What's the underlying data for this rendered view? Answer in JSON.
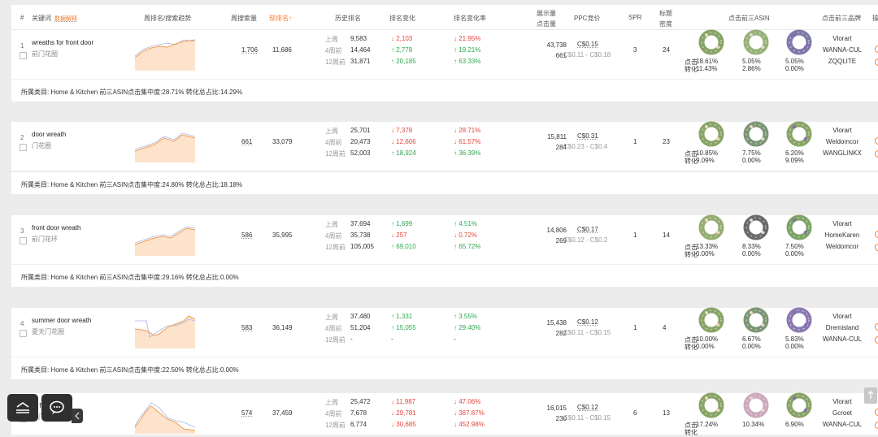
{
  "header": {
    "index": "#",
    "keyword": "关键词",
    "data_explain": "数据解释",
    "trend": "周排名/搜索趋势",
    "weekly_search": "周搜索量",
    "current_rank": "现排名↑",
    "history_rank": "历史排名",
    "rank_change": "排名变化",
    "rank_change_rate": "排名变化率",
    "impressions": "展示量",
    "clicks": "点击量",
    "ppc": "PPC竞价",
    "spr": "SPR",
    "title_density_1": "标题",
    "title_density_2": "密度",
    "top3_asin": "点击前三ASIN",
    "top3_brand": "点击前三品牌",
    "more": "操"
  },
  "period_labels": [
    "上周",
    "4周前",
    "12周前"
  ],
  "metric_labels": {
    "click": "点击",
    "conv": "转化"
  },
  "rows": [
    {
      "index": "1",
      "keyword": "wreaths for front door",
      "keyword_cn": "前门花圈",
      "weekly_search": "1,706",
      "rank": "11,686",
      "history": [
        "9,583",
        "14,464",
        "31,871"
      ],
      "change": [
        "2,103",
        "2,778",
        "20,185"
      ],
      "change_dir": [
        "down",
        "up",
        "up"
      ],
      "rate": [
        "21.95%",
        "19.21%",
        "63.33%"
      ],
      "rate_dir": [
        "down",
        "up",
        "up"
      ],
      "impressions": "43,738",
      "clicks": "661",
      "ppc": "C$0.15",
      "ppc_range": "C$0.11 - C$0.18",
      "spr": "3",
      "density": "24",
      "asins": [
        {
          "click": "18.61%",
          "conv": "11.43%"
        },
        {
          "click": "5.05%",
          "conv": "2.86%"
        },
        {
          "click": "5.05%",
          "conv": "0.00%"
        }
      ],
      "brands": [
        "Vlorart",
        "WANNA-CUL",
        "ZQQLITE"
      ],
      "category": "所属类目: Home & Kitchen   前三ASIN点击集中度:28.71%   转化总占比:14.29%"
    },
    {
      "index": "2",
      "keyword": "door wreath",
      "keyword_cn": "门花圈",
      "weekly_search": "661",
      "rank": "33,079",
      "history": [
        "25,701",
        "20,473",
        "52,003"
      ],
      "change": [
        "7,378",
        "12,606",
        "18,924"
      ],
      "change_dir": [
        "down",
        "down",
        "up"
      ],
      "rate": [
        "28.71%",
        "61.57%",
        "36.39%"
      ],
      "rate_dir": [
        "down",
        "down",
        "up"
      ],
      "impressions": "15,811",
      "clicks": "284",
      "ppc": "C$0.31",
      "ppc_range": "C$0.23 - C$0.4",
      "spr": "1",
      "density": "23",
      "asins": [
        {
          "click": "10.85%",
          "conv": "9.09%"
        },
        {
          "click": "7.75%",
          "conv": "0.00%"
        },
        {
          "click": "6.20%",
          "conv": "9.09%"
        }
      ],
      "brands": [
        "Vlorart",
        "Weldomcor",
        "WANGLINKX"
      ],
      "category": "所属类目: Home & Kitchen   前三ASIN点击集中度:24.80%   转化总占比:18.18%"
    },
    {
      "index": "3",
      "keyword": "front door wreath",
      "keyword_cn": "前门花环",
      "weekly_search": "586",
      "rank": "35,995",
      "history": [
        "37,694",
        "35,738",
        "105,005"
      ],
      "change": [
        "1,699",
        "257",
        "69,010"
      ],
      "change_dir": [
        "up",
        "down",
        "up"
      ],
      "rate": [
        "4.51%",
        "0.72%",
        "65.72%"
      ],
      "rate_dir": [
        "up",
        "down",
        "up"
      ],
      "impressions": "14,806",
      "clicks": "269",
      "ppc": "C$0.17",
      "ppc_range": "C$0.12 - C$0.2",
      "spr": "1",
      "density": "14",
      "asins": [
        {
          "click": "13.33%",
          "conv": "0.00%"
        },
        {
          "click": "8.33%",
          "conv": "0.00%"
        },
        {
          "click": "7.50%",
          "conv": "0.00%"
        }
      ],
      "brands": [
        "Vlorart",
        "HomeKaren",
        "Weldomcor"
      ],
      "category": "所属类目: Home & Kitchen   前三ASIN点击集中度:29.16%   转化总占比:0.00%"
    },
    {
      "index": "4",
      "keyword": "summer door wreath",
      "keyword_cn": "夏天门花圈",
      "weekly_search": "583",
      "rank": "36,149",
      "history": [
        "37,480",
        "51,204",
        "-"
      ],
      "change": [
        "1,331",
        "15,055",
        "-"
      ],
      "change_dir": [
        "up",
        "up",
        "none"
      ],
      "rate": [
        "3.55%",
        "29.40%",
        "-"
      ],
      "rate_dir": [
        "up",
        "up",
        "none"
      ],
      "impressions": "15,438",
      "clicks": "282",
      "ppc": "C$0.12",
      "ppc_range": "C$0.11 - C$0.15",
      "spr": "1",
      "density": "4",
      "asins": [
        {
          "click": "10.00%",
          "conv": "0.00%"
        },
        {
          "click": "6.67%",
          "conv": "0.00%"
        },
        {
          "click": "5.83%",
          "conv": "0.00%"
        }
      ],
      "brands": [
        "Vlorart",
        "Dremisland",
        "WANNA-CUL"
      ],
      "category": "所属类目: Home & Kitchen   前三ASIN点击集中度:22.50%   转化总占比:0.00%"
    },
    {
      "index": "5",
      "keyword": "or front door",
      "keyword_cn": "前门花圈",
      "weekly_search": "574",
      "rank": "37,459",
      "history": [
        "25,472",
        "7,678",
        "6,774"
      ],
      "change": [
        "11,987",
        "29,781",
        "30,685"
      ],
      "change_dir": [
        "down",
        "down",
        "down"
      ],
      "rate": [
        "47.06%",
        "387.87%",
        "452.98%"
      ],
      "rate_dir": [
        "down",
        "down",
        "down"
      ],
      "impressions": "16,015",
      "clicks": "230",
      "ppc": "C$0.12",
      "ppc_range": "C$0.11 - C$0.15",
      "spr": "6",
      "density": "13",
      "asins": [
        {
          "click": "17.24%",
          "conv": ""
        },
        {
          "click": "10.34%",
          "conv": ""
        },
        {
          "click": "6.90%",
          "conv": ""
        }
      ],
      "brands": [
        "Vlorart",
        "Gcroet",
        "WANNA-CUL"
      ],
      "category": ""
    }
  ],
  "colors": {
    "accent": "#f07c2f",
    "up": "#2fa84f",
    "down": "#e8453c",
    "trend_fill": "#fde3cc",
    "trend_line": "#f39a4f",
    "trend_line2": "#a8b4e8"
  }
}
